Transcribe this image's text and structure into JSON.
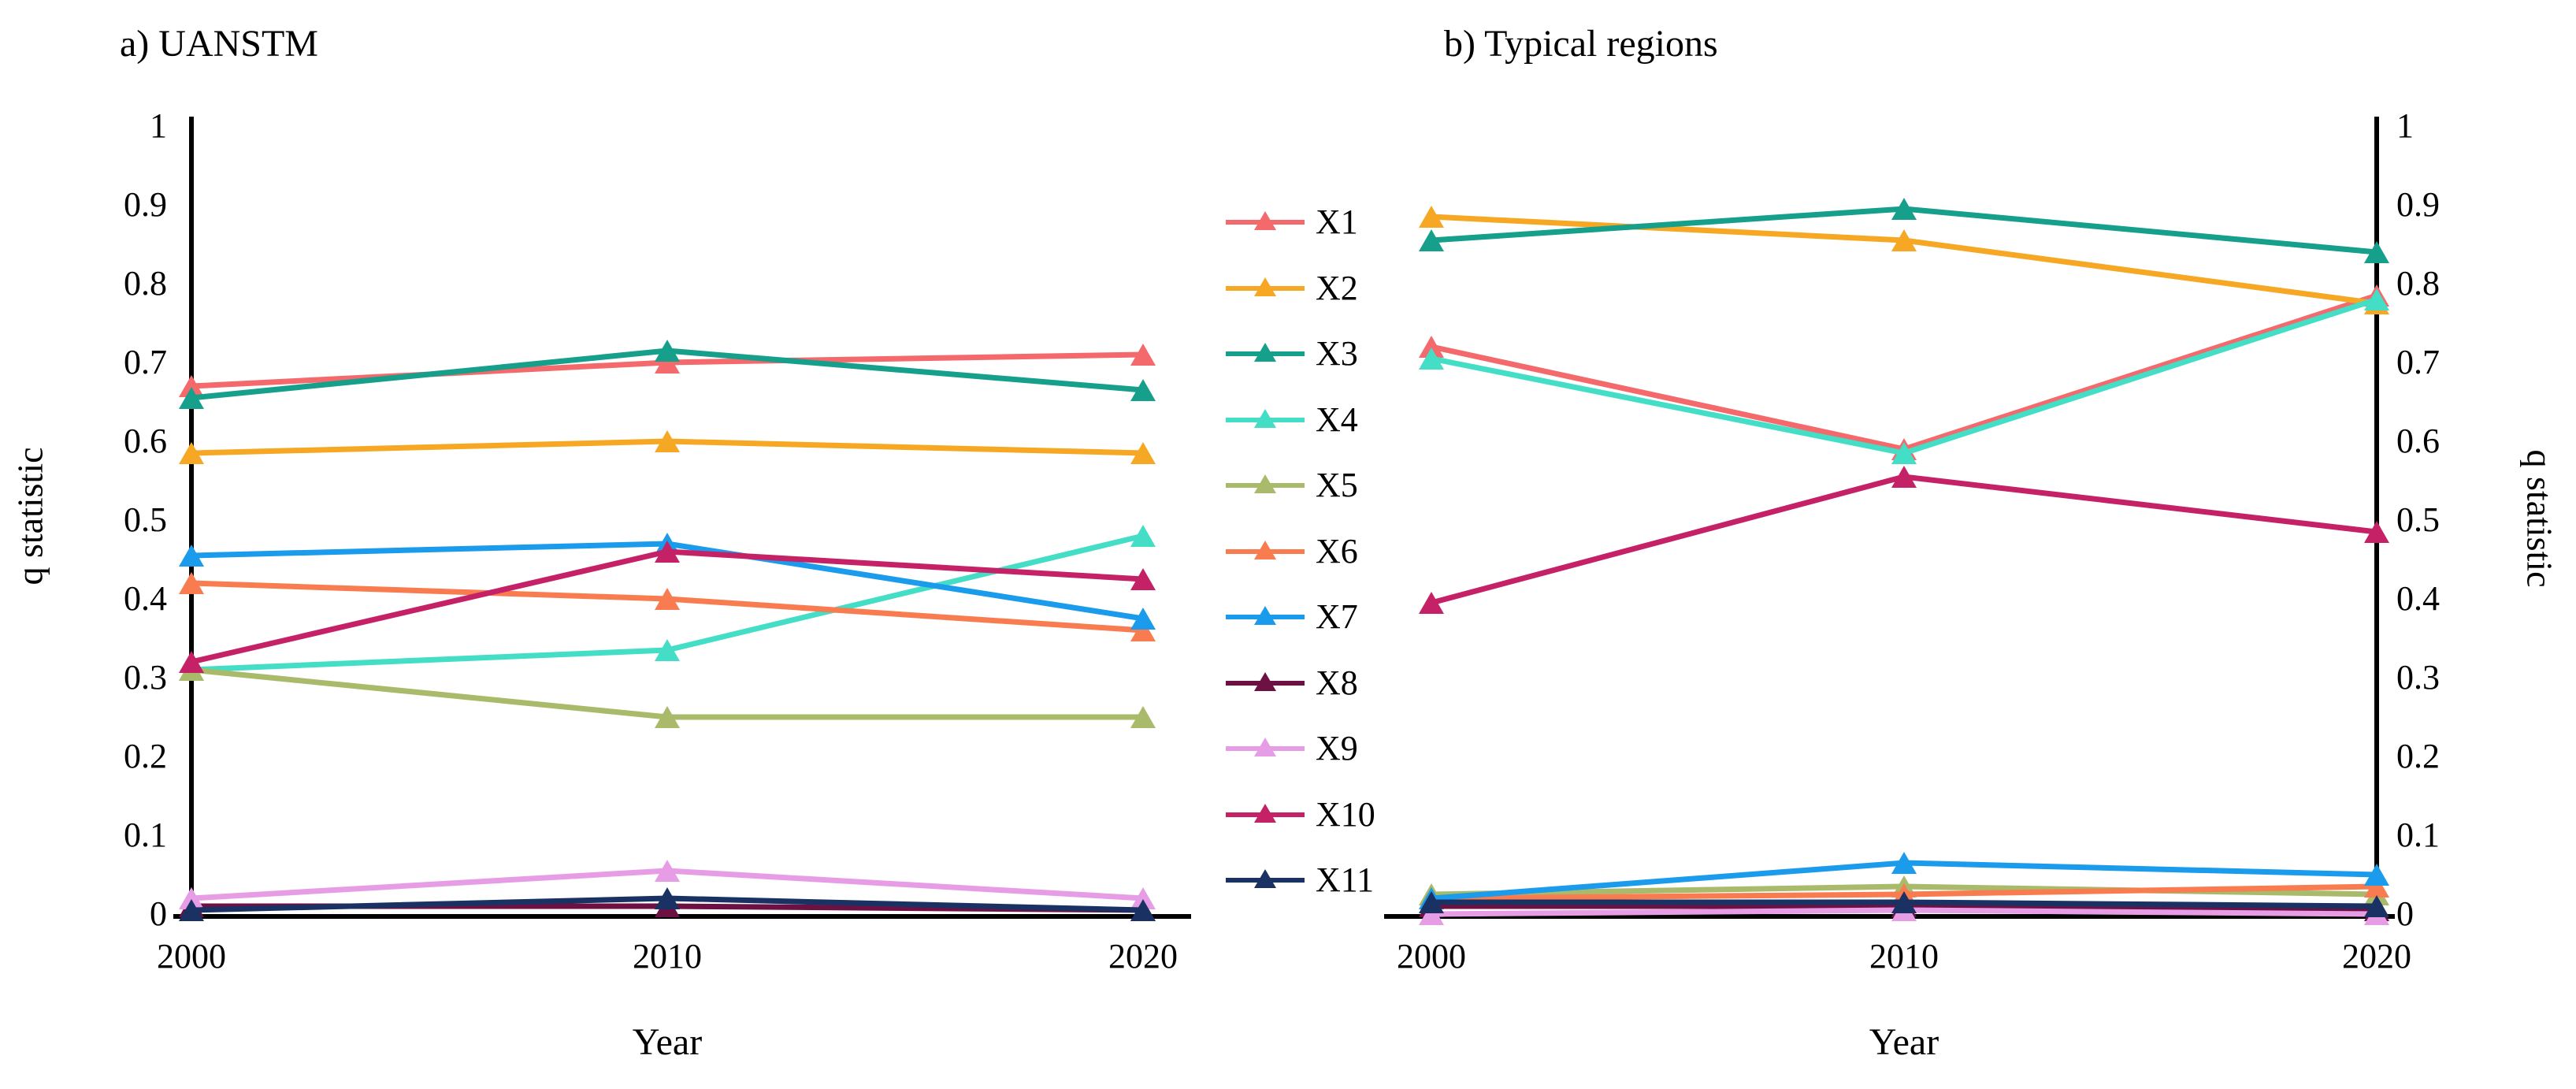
{
  "chart_data": [
    {
      "type": "line",
      "title": "a) UANSTM",
      "xlabel": "Year",
      "ylabel": "q statistic",
      "axis_side": "left",
      "x": [
        "2000",
        "2010",
        "2020"
      ],
      "ylim": [
        0,
        1
      ],
      "yticks": [
        "1",
        "0.9",
        "0.8",
        "0.7",
        "0.6",
        "0.5",
        "0.4",
        "0.3",
        "0.2",
        "0.1",
        "0"
      ],
      "grid": false,
      "marker": "triangle-up",
      "series": [
        {
          "name": "X1",
          "color": "#F4696B",
          "values": [
            0.67,
            0.7,
            0.71
          ]
        },
        {
          "name": "X2",
          "color": "#F6A723",
          "values": [
            0.585,
            0.6,
            0.585
          ]
        },
        {
          "name": "X3",
          "color": "#16A08C",
          "values": [
            0.655,
            0.715,
            0.665
          ]
        },
        {
          "name": "X4",
          "color": "#43DEC5",
          "values": [
            0.31,
            0.335,
            0.48
          ]
        },
        {
          "name": "X5",
          "color": "#A9BA6B",
          "values": [
            0.31,
            0.25,
            0.25
          ]
        },
        {
          "name": "X6",
          "color": "#F87C4F",
          "values": [
            0.42,
            0.4,
            0.36
          ]
        },
        {
          "name": "X7",
          "color": "#1B9BEB",
          "values": [
            0.455,
            0.47,
            0.375
          ]
        },
        {
          "name": "X8",
          "color": "#6D1144",
          "values": [
            0.01,
            0.01,
            0.005
          ]
        },
        {
          "name": "X9",
          "color": "#E79DE6",
          "values": [
            0.02,
            0.055,
            0.02
          ]
        },
        {
          "name": "X10",
          "color": "#C52166",
          "values": [
            0.32,
            0.46,
            0.425
          ]
        },
        {
          "name": "X11",
          "color": "#1A3263",
          "values": [
            0.005,
            0.02,
            0.005
          ]
        }
      ]
    },
    {
      "type": "line",
      "title": "b) Typical regions",
      "xlabel": "Year",
      "ylabel": "q statistic",
      "axis_side": "right",
      "x": [
        "2000",
        "2010",
        "2020"
      ],
      "ylim": [
        0,
        1
      ],
      "yticks": [
        "1",
        "0.9",
        "0.8",
        "0.7",
        "0.6",
        "0.5",
        "0.4",
        "0.3",
        "0.2",
        "0.1",
        "0"
      ],
      "grid": false,
      "marker": "triangle-up",
      "series": [
        {
          "name": "X1",
          "color": "#F4696B",
          "values": [
            0.72,
            0.59,
            0.785
          ]
        },
        {
          "name": "X2",
          "color": "#F6A723",
          "values": [
            0.885,
            0.855,
            0.775
          ]
        },
        {
          "name": "X3",
          "color": "#16A08C",
          "values": [
            0.855,
            0.895,
            0.84
          ]
        },
        {
          "name": "X4",
          "color": "#43DEC5",
          "values": [
            0.705,
            0.585,
            0.78
          ]
        },
        {
          "name": "X5",
          "color": "#A9BA6B",
          "values": [
            0.025,
            0.035,
            0.025
          ]
        },
        {
          "name": "X6",
          "color": "#F87C4F",
          "values": [
            0.02,
            0.025,
            0.035
          ]
        },
        {
          "name": "X7",
          "color": "#1B9BEB",
          "values": [
            0.02,
            0.065,
            0.05
          ]
        },
        {
          "name": "X8",
          "color": "#6D1144",
          "values": [
            0.01,
            0.01,
            0.005
          ]
        },
        {
          "name": "X9",
          "color": "#E79DE6",
          "values": [
            0.0,
            0.005,
            0.0
          ]
        },
        {
          "name": "X10",
          "color": "#C52166",
          "values": [
            0.395,
            0.555,
            0.485
          ]
        },
        {
          "name": "X11",
          "color": "#1A3263",
          "values": [
            0.015,
            0.015,
            0.01
          ]
        }
      ]
    }
  ],
  "legend": {
    "marker": "triangle-up",
    "entries": [
      "X1",
      "X2",
      "X3",
      "X4",
      "X5",
      "X6",
      "X7",
      "X8",
      "X9",
      "X10",
      "X11"
    ]
  },
  "axis_color": "#000000"
}
